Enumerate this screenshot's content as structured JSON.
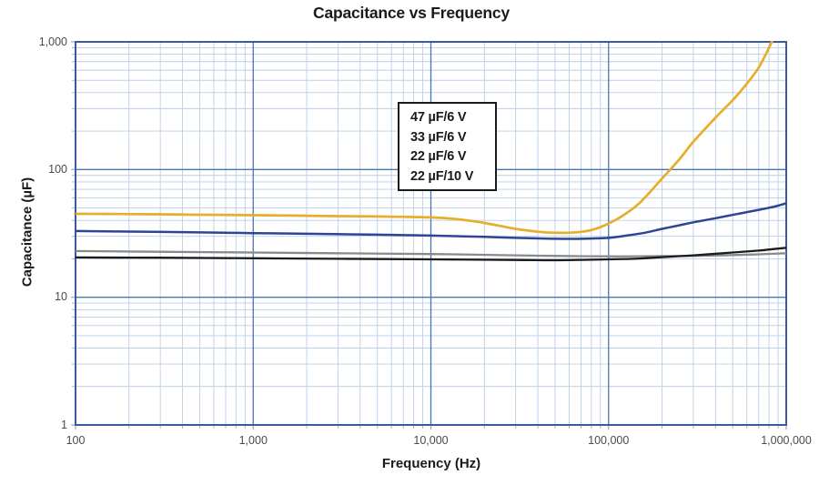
{
  "title": "Capacitance vs Frequency",
  "chart_data": {
    "type": "line",
    "title": "Capacitance vs Frequency",
    "xlabel": "Frequency (Hz)",
    "ylabel": "Capacitance (µF)",
    "x_scale": "log",
    "y_scale": "log",
    "xlim": [
      100,
      1000000
    ],
    "ylim": [
      1,
      1000
    ],
    "grid": "log major + minor, on",
    "x_ticks": [
      100,
      1000,
      10000,
      100000,
      1000000
    ],
    "x_tick_labels": [
      "100",
      "1,000",
      "10,000",
      "100,000",
      "1,000,000"
    ],
    "y_ticks": [
      1000,
      100,
      10,
      1
    ],
    "y_tick_labels": [
      "1,000",
      "100",
      "10",
      "1"
    ],
    "legend": {
      "position": "upper-center",
      "entries": [
        "47 µF/6 V",
        "33 µF/6 V",
        "22 µF/6 V",
        "22 µF/10 V"
      ]
    },
    "series": [
      {
        "name": "22 µF/6 V",
        "color": "#8A8A8A",
        "stroke_width": 2.3,
        "points": [
          [
            100,
            23
          ],
          [
            300,
            22.7
          ],
          [
            1000,
            22.4
          ],
          [
            3000,
            22.1
          ],
          [
            10000,
            21.8
          ],
          [
            30000,
            21.3
          ],
          [
            50000,
            21.1
          ],
          [
            100000,
            20.9
          ],
          [
            200000,
            21.0
          ],
          [
            300000,
            21.1
          ],
          [
            500000,
            21.4
          ],
          [
            700000,
            21.7
          ],
          [
            1000000,
            22.1
          ]
        ]
      },
      {
        "name": "22 µF/10 V",
        "color": "#1c1c1c",
        "stroke_width": 2.3,
        "points": [
          [
            100,
            20.5
          ],
          [
            300,
            20.4
          ],
          [
            1000,
            20.2
          ],
          [
            3000,
            20.0
          ],
          [
            10000,
            19.8
          ],
          [
            30000,
            19.6
          ],
          [
            50000,
            19.5
          ],
          [
            100000,
            19.8
          ],
          [
            150000,
            20.1
          ],
          [
            200000,
            20.6
          ],
          [
            300000,
            21.3
          ],
          [
            500000,
            22.4
          ],
          [
            700000,
            23.2
          ],
          [
            1000000,
            24.4
          ]
        ]
      },
      {
        "name": "33 µF/6 V",
        "color": "#2E4494",
        "stroke_width": 2.5,
        "points": [
          [
            100,
            33
          ],
          [
            200,
            32.7
          ],
          [
            500,
            32.2
          ],
          [
            1000,
            31.8
          ],
          [
            2000,
            31.4
          ],
          [
            5000,
            30.9
          ],
          [
            10000,
            30.4
          ],
          [
            15000,
            30.0
          ],
          [
            20000,
            29.7
          ],
          [
            30000,
            29.2
          ],
          [
            40000,
            28.9
          ],
          [
            50000,
            28.7
          ],
          [
            70000,
            28.7
          ],
          [
            100000,
            29.2
          ],
          [
            130000,
            30.6
          ],
          [
            160000,
            32.0
          ],
          [
            200000,
            34.3
          ],
          [
            250000,
            36.6
          ],
          [
            300000,
            38.6
          ],
          [
            400000,
            41.6
          ],
          [
            500000,
            44.2
          ],
          [
            600000,
            46.4
          ],
          [
            700000,
            48.4
          ],
          [
            800000,
            50.2
          ],
          [
            900000,
            52.2
          ],
          [
            1000000,
            54.5
          ]
        ]
      },
      {
        "name": "47 µF/6 V",
        "color": "#E6AE2A",
        "stroke_width": 2.7,
        "points": [
          [
            100,
            45
          ],
          [
            150,
            44.9
          ],
          [
            200,
            44.8
          ],
          [
            300,
            44.6
          ],
          [
            500,
            44.3
          ],
          [
            700,
            44.1
          ],
          [
            1000,
            43.9
          ],
          [
            1500,
            43.7
          ],
          [
            2000,
            43.5
          ],
          [
            3000,
            43.2
          ],
          [
            5000,
            42.9
          ],
          [
            7000,
            42.6
          ],
          [
            10000,
            42.2
          ],
          [
            13000,
            41.3
          ],
          [
            16000,
            40.0
          ],
          [
            20000,
            38.2
          ],
          [
            25000,
            36.0
          ],
          [
            30000,
            34.3
          ],
          [
            40000,
            32.6
          ],
          [
            50000,
            32.0
          ],
          [
            60000,
            32.0
          ],
          [
            70000,
            32.5
          ],
          [
            80000,
            33.6
          ],
          [
            90000,
            35.4
          ],
          [
            100000,
            37.8
          ],
          [
            120000,
            43.5
          ],
          [
            150000,
            55
          ],
          [
            200000,
            85
          ],
          [
            250000,
            120
          ],
          [
            300000,
            165
          ],
          [
            400000,
            255
          ],
          [
            500000,
            350
          ],
          [
            600000,
            470
          ],
          [
            700000,
            630
          ],
          [
            800000,
            900
          ],
          [
            900000,
            1300
          ],
          [
            1000000,
            1900
          ]
        ]
      }
    ],
    "style_colors": {
      "frame": "#3A5C9E",
      "major_grid": "#4C74B0",
      "minor_grid": "#B9CFE9",
      "tick_stub": "#8FAFD6",
      "tick_text": "#4a4a4a",
      "label_text": "#1a1a1a"
    }
  }
}
